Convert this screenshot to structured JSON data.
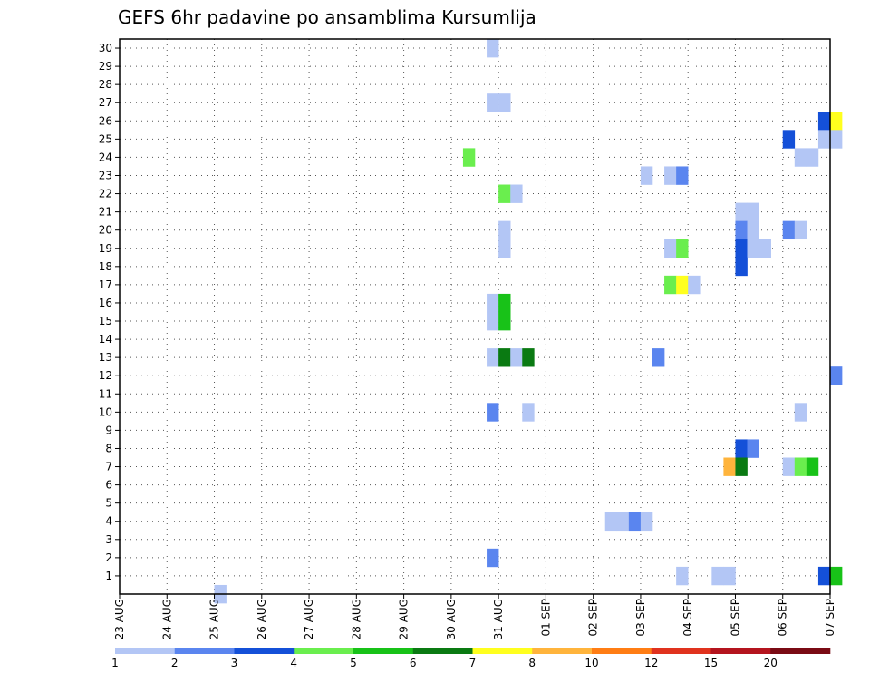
{
  "chart_data": {
    "type": "heatmap",
    "title": "GEFS 6hr padavine po ansamblima Kursumlija",
    "xlabel": "",
    "ylabel": "",
    "ylim": [
      0,
      30
    ],
    "y_ticks": [
      1,
      2,
      3,
      4,
      5,
      6,
      7,
      8,
      9,
      10,
      11,
      12,
      13,
      14,
      15,
      16,
      17,
      18,
      19,
      20,
      21,
      22,
      23,
      24,
      25,
      26,
      27,
      28,
      29,
      30
    ],
    "x_ticks": [
      "23 AUG",
      "24 AUG",
      "25 AUG",
      "26 AUG",
      "27 AUG",
      "28 AUG",
      "29 AUG",
      "30 AUG",
      "31 AUG",
      "01 SEP",
      "02 SEP",
      "03 SEP",
      "04 SEP",
      "05 SEP",
      "06 SEP",
      "07 SEP"
    ],
    "time_step_hours": 6,
    "grid": true,
    "colorbar": {
      "labels": [
        "1",
        "2",
        "3",
        "4",
        "5",
        "6",
        "7",
        "8",
        "10",
        "12",
        "15",
        "20"
      ],
      "colors": [
        "#b3c6f5",
        "#5a85ef",
        "#1450d8",
        "#6aee4e",
        "#18c218",
        "#0a7a12",
        "#ffff1e",
        "#ffb43c",
        "#ff7d14",
        "#e0321e",
        "#b4141e",
        "#7a0a14"
      ]
    },
    "cells": [
      {
        "member": 30,
        "step": 31,
        "level": 1
      },
      {
        "member": 27,
        "step": 31,
        "level": 1
      },
      {
        "member": 27,
        "step": 32,
        "level": 1
      },
      {
        "member": 26,
        "step": 59,
        "level": 3
      },
      {
        "member": 26,
        "step": 60,
        "level": 7
      },
      {
        "member": 25,
        "step": 56,
        "level": 3
      },
      {
        "member": 25,
        "step": 59,
        "level": 1
      },
      {
        "member": 25,
        "step": 60,
        "level": 1
      },
      {
        "member": 24,
        "step": 29,
        "level": 4
      },
      {
        "member": 24,
        "step": 57,
        "level": 1
      },
      {
        "member": 24,
        "step": 58,
        "level": 1
      },
      {
        "member": 23,
        "step": 44,
        "level": 1
      },
      {
        "member": 23,
        "step": 46,
        "level": 1
      },
      {
        "member": 23,
        "step": 47,
        "level": 2
      },
      {
        "member": 22,
        "step": 32,
        "level": 4
      },
      {
        "member": 22,
        "step": 33,
        "level": 1
      },
      {
        "member": 21,
        "step": 52,
        "level": 1
      },
      {
        "member": 21,
        "step": 53,
        "level": 1
      },
      {
        "member": 20,
        "step": 32,
        "level": 1
      },
      {
        "member": 20,
        "step": 52,
        "level": 2
      },
      {
        "member": 20,
        "step": 53,
        "level": 1
      },
      {
        "member": 20,
        "step": 56,
        "level": 2
      },
      {
        "member": 20,
        "step": 57,
        "level": 1
      },
      {
        "member": 19,
        "step": 32,
        "level": 1
      },
      {
        "member": 19,
        "step": 46,
        "level": 1
      },
      {
        "member": 19,
        "step": 47,
        "level": 4
      },
      {
        "member": 19,
        "step": 52,
        "level": 3
      },
      {
        "member": 19,
        "step": 53,
        "level": 1
      },
      {
        "member": 19,
        "step": 54,
        "level": 1
      },
      {
        "member": 18,
        "step": 52,
        "level": 3
      },
      {
        "member": 17,
        "step": 46,
        "level": 4
      },
      {
        "member": 17,
        "step": 47,
        "level": 7
      },
      {
        "member": 17,
        "step": 48,
        "level": 1
      },
      {
        "member": 16,
        "step": 31,
        "level": 1
      },
      {
        "member": 16,
        "step": 32,
        "level": 5
      },
      {
        "member": 15,
        "step": 31,
        "level": 1
      },
      {
        "member": 15,
        "step": 32,
        "level": 5
      },
      {
        "member": 13,
        "step": 31,
        "level": 1
      },
      {
        "member": 13,
        "step": 32,
        "level": 6
      },
      {
        "member": 13,
        "step": 33,
        "level": 1
      },
      {
        "member": 13,
        "step": 34,
        "level": 6
      },
      {
        "member": 13,
        "step": 45,
        "level": 2
      },
      {
        "member": 12,
        "step": 60,
        "level": 2
      },
      {
        "member": 10,
        "step": 31,
        "level": 2
      },
      {
        "member": 10,
        "step": 34,
        "level": 1
      },
      {
        "member": 10,
        "step": 57,
        "level": 1
      },
      {
        "member": 8,
        "step": 52,
        "level": 3
      },
      {
        "member": 8,
        "step": 53,
        "level": 2
      },
      {
        "member": 7,
        "step": 51,
        "level": 8
      },
      {
        "member": 7,
        "step": 52,
        "level": 6
      },
      {
        "member": 7,
        "step": 56,
        "level": 1
      },
      {
        "member": 7,
        "step": 57,
        "level": 4
      },
      {
        "member": 7,
        "step": 58,
        "level": 5
      },
      {
        "member": 4,
        "step": 41,
        "level": 1
      },
      {
        "member": 4,
        "step": 42,
        "level": 1
      },
      {
        "member": 4,
        "step": 43,
        "level": 2
      },
      {
        "member": 4,
        "step": 44,
        "level": 1
      },
      {
        "member": 2,
        "step": 31,
        "level": 2
      },
      {
        "member": 1,
        "step": 47,
        "level": 1
      },
      {
        "member": 1,
        "step": 50,
        "level": 1
      },
      {
        "member": 1,
        "step": 51,
        "level": 1
      },
      {
        "member": 1,
        "step": 59,
        "level": 3
      },
      {
        "member": 1,
        "step": 60,
        "level": 5
      },
      {
        "member": 0,
        "step": 8,
        "level": 1
      }
    ]
  }
}
